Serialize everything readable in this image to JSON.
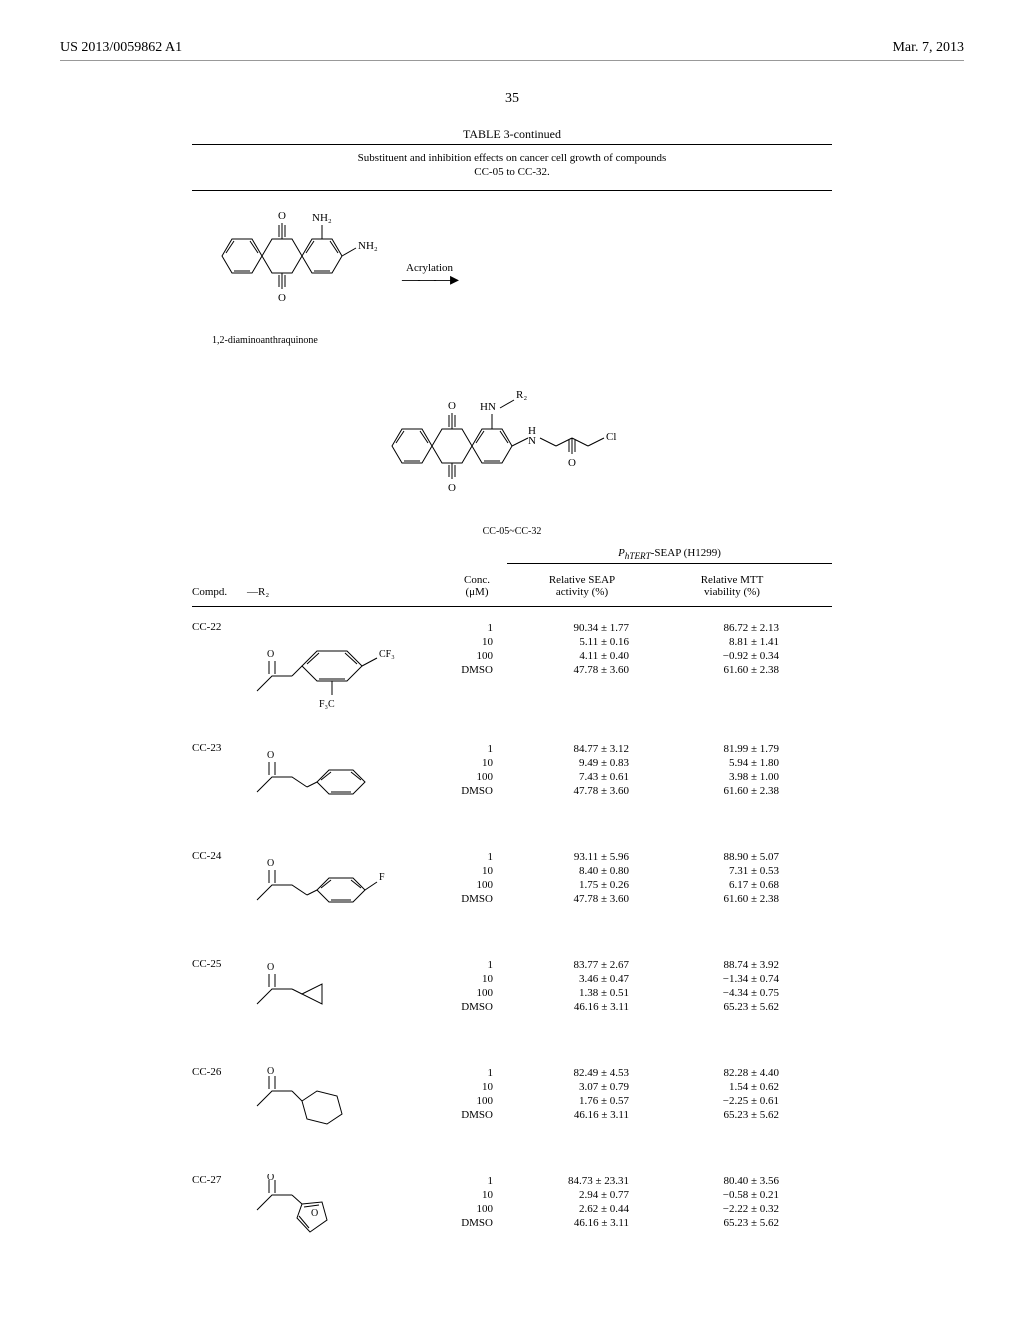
{
  "header": {
    "pub_number": "US 2013/0059862 A1",
    "pub_date": "Mar. 7, 2013"
  },
  "page_number": "35",
  "table": {
    "title": "TABLE 3-continued",
    "caption_line1": "Substituent and inhibition effects on cancer cell growth of compounds",
    "caption_line2": "CC-05 to CC-32.",
    "starting_material_label": "1,2-diaminoanthraquinone",
    "reaction_label": "Acrylation",
    "product_label": "CC-05~CC-32",
    "seap_header": "P_hTERT-SEAP (H1299)",
    "col_compd": "Compd.",
    "col_r2": "—R₂",
    "col_conc": "Conc.\n(μM)",
    "col_seap": "Relative SEAP\nactivity (%)",
    "col_mtt": "Relative MTT\nviability (%)"
  },
  "colors": {
    "text": "#000000",
    "background": "#ffffff",
    "rule": "#000000"
  },
  "rows": [
    {
      "id": "CC-22",
      "r2_desc": "3,5-bis(trifluoromethyl)benzoyl",
      "data": [
        {
          "conc": "1",
          "seap": "90.34 ± 1.77",
          "mtt": "86.72 ± 2.13"
        },
        {
          "conc": "10",
          "seap": "5.11 ± 0.16",
          "mtt": "8.81 ± 1.41"
        },
        {
          "conc": "100",
          "seap": "4.11 ± 0.40",
          "mtt": "−0.92 ± 0.34"
        },
        {
          "conc": "DMSO",
          "seap": "47.78 ± 3.60",
          "mtt": "61.60 ± 2.38"
        }
      ]
    },
    {
      "id": "CC-23",
      "r2_desc": "phenylacetyl",
      "data": [
        {
          "conc": "1",
          "seap": "84.77 ± 3.12",
          "mtt": "81.99 ± 1.79"
        },
        {
          "conc": "10",
          "seap": "9.49 ± 0.83",
          "mtt": "5.94 ± 1.80"
        },
        {
          "conc": "100",
          "seap": "7.43 ± 0.61",
          "mtt": "3.98 ± 1.00"
        },
        {
          "conc": "DMSO",
          "seap": "47.78 ± 3.60",
          "mtt": "61.60 ± 2.38"
        }
      ]
    },
    {
      "id": "CC-24",
      "r2_desc": "4-fluorophenylacetyl",
      "data": [
        {
          "conc": "1",
          "seap": "93.11 ± 5.96",
          "mtt": "88.90 ± 5.07"
        },
        {
          "conc": "10",
          "seap": "8.40 ± 0.80",
          "mtt": "7.31 ± 0.53"
        },
        {
          "conc": "100",
          "seap": "1.75 ± 0.26",
          "mtt": "6.17 ± 0.68"
        },
        {
          "conc": "DMSO",
          "seap": "47.78 ± 3.60",
          "mtt": "61.60 ± 2.38"
        }
      ]
    },
    {
      "id": "CC-25",
      "r2_desc": "cyclopropanecarbonyl",
      "data": [
        {
          "conc": "1",
          "seap": "83.77 ± 2.67",
          "mtt": "88.74 ± 3.92"
        },
        {
          "conc": "10",
          "seap": "3.46 ± 0.47",
          "mtt": "−1.34 ± 0.74"
        },
        {
          "conc": "100",
          "seap": "1.38 ± 0.51",
          "mtt": "−4.34 ± 0.75"
        },
        {
          "conc": "DMSO",
          "seap": "46.16 ± 3.11",
          "mtt": "65.23 ± 5.62"
        }
      ]
    },
    {
      "id": "CC-26",
      "r2_desc": "cyclohexanecarbonyl",
      "data": [
        {
          "conc": "1",
          "seap": "82.49 ± 4.53",
          "mtt": "82.28 ± 4.40"
        },
        {
          "conc": "10",
          "seap": "3.07 ± 0.79",
          "mtt": "1.54 ± 0.62"
        },
        {
          "conc": "100",
          "seap": "1.76 ± 0.57",
          "mtt": "−2.25 ± 0.61"
        },
        {
          "conc": "DMSO",
          "seap": "46.16 ± 3.11",
          "mtt": "65.23 ± 5.62"
        }
      ]
    },
    {
      "id": "CC-27",
      "r2_desc": "furan-2-carbonyl",
      "data": [
        {
          "conc": "1",
          "seap": "84.73 ± 23.31",
          "mtt": "80.40 ± 3.56"
        },
        {
          "conc": "10",
          "seap": "2.94 ± 0.77",
          "mtt": "−0.58 ± 0.21"
        },
        {
          "conc": "100",
          "seap": "2.62 ± 0.44",
          "mtt": "−2.22 ± 0.32"
        },
        {
          "conc": "DMSO",
          "seap": "46.16 ± 3.11",
          "mtt": "65.23 ± 5.62"
        }
      ]
    }
  ]
}
